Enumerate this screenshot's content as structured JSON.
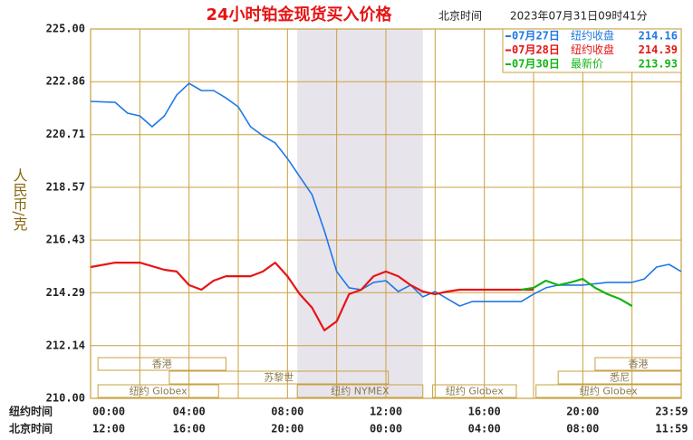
{
  "chart_data": {
    "type": "line",
    "title": "24小时铂金现货买入价格",
    "subtitle": "北京时间",
    "timestamp": "2023年07月31日09时41分",
    "ylabel": "人民币/克",
    "xrow_labels": [
      "纽约时间",
      "北京时间"
    ],
    "xlim": [
      0,
      24
    ],
    "ylim": [
      210,
      225
    ],
    "yticks": [
      {
        "value": 225,
        "label": "225.00"
      },
      222.86,
      220.71,
      218.57,
      216.43,
      214.29,
      212.14,
      {
        "value": 210,
        "label": "210.00"
      }
    ],
    "xticks": [
      {
        "value": 0,
        "label": "00:00"
      },
      {
        "value": 4,
        "label": "04:00"
      },
      {
        "value": 8,
        "label": "08:00"
      },
      {
        "value": 12,
        "label": "12:00"
      },
      {
        "value": 16,
        "label": "16:00"
      },
      {
        "value": 20,
        "label": "20:00"
      },
      {
        "value": 23.983,
        "label": "23:59"
      }
    ],
    "xticks_beijing": [
      "12:00",
      "16:00",
      "20:00",
      "00:00",
      "04:00",
      "08:00",
      "11:59"
    ],
    "xgrid": [
      0,
      2,
      4,
      6,
      8,
      10,
      12,
      14,
      16,
      18,
      20,
      22,
      24
    ],
    "grid": true,
    "shaded_range": [
      8.4,
      13.5
    ],
    "sessions": [
      {
        "label": "香港",
        "start": 0.3,
        "end": 5.5,
        "row": 0
      },
      {
        "label": "香港",
        "start": 20.5,
        "end": 24,
        "row": 0
      },
      {
        "label": "苏黎世",
        "start": 3.2,
        "end": 12.1,
        "row": 1
      },
      {
        "label": "悉尼",
        "start": 19,
        "end": 24,
        "row": 1
      },
      {
        "label": "纽约 Globex",
        "start": 0.3,
        "end": 5.2,
        "row": 2
      },
      {
        "label": "纽约 NYMEX",
        "start": 8.4,
        "end": 13.5,
        "row": 2
      },
      {
        "label": "纽约 Globex",
        "start": 13.9,
        "end": 17.3,
        "row": 2
      },
      {
        "label": "纽约 Globex",
        "start": 18.1,
        "end": 24,
        "row": 2
      }
    ],
    "series": [
      {
        "name": "07月27日",
        "color": "#1e78e6",
        "note": "纽约收盘",
        "close": 214.16,
        "x": [
          0,
          1,
          1.5,
          2,
          2.5,
          3,
          3.5,
          4,
          4.5,
          5,
          5.5,
          6,
          6.5,
          7,
          7.5,
          8,
          8.5,
          9,
          9.5,
          10,
          10.5,
          11,
          11.5,
          12,
          12.5,
          13,
          13.5,
          14,
          14.5,
          15,
          15.5,
          16,
          17,
          17.5,
          18,
          18.5,
          19,
          20,
          21,
          22,
          22.5,
          23,
          23.5,
          24
        ],
        "values": [
          222.06,
          222.02,
          221.58,
          221.47,
          221.03,
          221.47,
          222.32,
          222.79,
          222.5,
          222.5,
          222.2,
          221.84,
          221.03,
          220.66,
          220.37,
          219.74,
          219.0,
          218.27,
          216.8,
          215.15,
          214.49,
          214.41,
          214.71,
          214.78,
          214.34,
          214.6,
          214.12,
          214.34,
          214.04,
          213.75,
          213.93,
          213.93,
          213.93,
          213.93,
          214.23,
          214.49,
          214.6,
          214.6,
          214.71,
          214.71,
          214.85,
          215.33,
          215.44,
          215.15
        ]
      },
      {
        "name": "07月28日",
        "color": "#e61414",
        "note": "纽约收盘",
        "close": 214.39,
        "x": [
          0,
          1,
          2,
          3,
          3.5,
          4,
          4.5,
          5,
          5.5,
          6,
          6.5,
          7,
          7.5,
          8,
          8.5,
          9,
          9.5,
          10,
          10.5,
          11,
          11.5,
          12,
          12.5,
          13,
          13.5,
          14,
          14.5,
          15,
          16,
          17,
          18
        ],
        "values": [
          215.33,
          215.51,
          215.51,
          215.22,
          215.15,
          214.6,
          214.41,
          214.78,
          214.96,
          214.96,
          214.96,
          215.15,
          215.51,
          214.96,
          214.23,
          213.68,
          212.76,
          213.13,
          214.23,
          214.41,
          214.96,
          215.15,
          214.96,
          214.6,
          214.34,
          214.23,
          214.34,
          214.41,
          214.41,
          214.41,
          214.41
        ]
      },
      {
        "name": "07月30日",
        "color": "#14b414",
        "note": "最新价",
        "close": 213.93,
        "x": [
          17.5,
          18,
          18.5,
          19,
          19.5,
          20,
          20.5,
          21,
          21.5,
          22
        ],
        "values": [
          214.41,
          214.49,
          214.78,
          214.6,
          214.71,
          214.85,
          214.49,
          214.23,
          214.04,
          213.75
        ]
      }
    ]
  }
}
